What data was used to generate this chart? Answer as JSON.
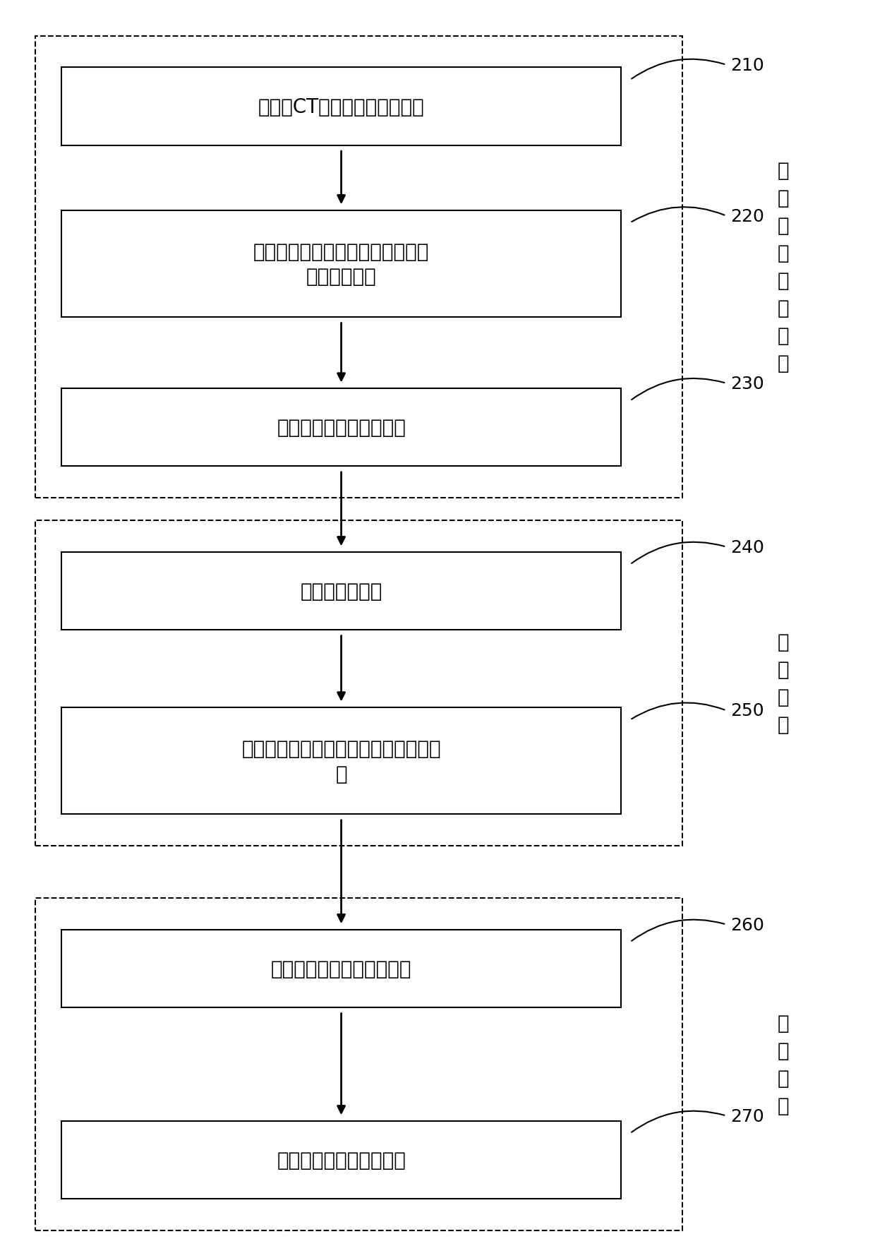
{
  "bg_color": "#ffffff",
  "box_edge_color": "#000000",
  "box_face_color": "#ffffff",
  "dashed_edge_color": "#000000",
  "arrow_color": "#000000",
  "text_color": "#000000",
  "steps": [
    {
      "id": 210,
      "lines": [
        "对全身CT影像进行二值化操作"
      ]
    },
    {
      "id": 220,
      "lines": [
        "查找最大连通区域，删除主要身体",
        "部位外的区域"
      ]
    },
    {
      "id": 230,
      "lines": [
        "判断肩部与颈部的交界层"
      ]
    },
    {
      "id": 240,
      "lines": [
        "确定最佳颌骨层"
      ]
    },
    {
      "id": 250,
      "lines": [
        "对最佳颌骨层中的颌骨区域进行湃圆拟",
        "合"
      ]
    },
    {
      "id": 260,
      "lines": [
        "根据湃圆拟合确定水平倾角"
      ]
    },
    {
      "id": 270,
      "lines": [
        "确定体位，实施头部校正"
      ]
    }
  ],
  "group1_label": "肩\n颈\n交\n界\n定\n位\n模\n块",
  "group2_label": "拟\n合\n模\n块",
  "group3_label": "校\n正\n模\n块",
  "font_size_box": 20,
  "font_size_group_label": 20,
  "font_size_ref": 18
}
